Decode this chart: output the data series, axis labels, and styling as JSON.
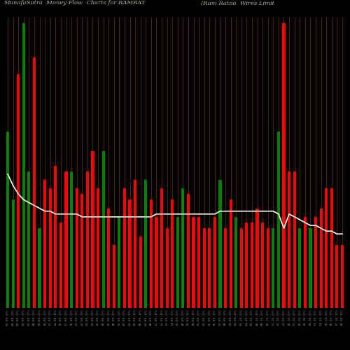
{
  "title_left": "MunafaSutra  Money Flow  Charts for RAMRAT",
  "title_right": "(Ram Ratna  Wires Limit",
  "background_color": "#000000",
  "bar_colors": [
    "green",
    "green",
    "red",
    "green",
    "green",
    "red",
    "green",
    "red",
    "red",
    "red",
    "red",
    "red",
    "green",
    "red",
    "red",
    "red",
    "red",
    "red",
    "green",
    "red",
    "red",
    "green",
    "red",
    "red",
    "red",
    "red",
    "green",
    "red",
    "red",
    "red",
    "red",
    "red",
    "green",
    "green",
    "red",
    "red",
    "red",
    "red",
    "red",
    "red",
    "green",
    "red",
    "red",
    "green",
    "red",
    "red",
    "red",
    "red",
    "red",
    "red",
    "green",
    "green",
    "red",
    "red",
    "red",
    "green",
    "red",
    "green",
    "red",
    "red",
    "red",
    "red",
    "red",
    "red"
  ],
  "bar_heights": [
    62,
    38,
    82,
    100,
    48,
    88,
    28,
    45,
    42,
    50,
    30,
    48,
    48,
    42,
    40,
    48,
    55,
    42,
    55,
    35,
    22,
    32,
    42,
    38,
    45,
    25,
    45,
    38,
    32,
    42,
    28,
    38,
    32,
    42,
    40,
    32,
    32,
    28,
    28,
    32,
    45,
    28,
    38,
    32,
    28,
    30,
    30,
    35,
    30,
    28,
    28,
    62,
    100,
    48,
    48,
    28,
    32,
    28,
    32,
    35,
    42,
    42,
    22,
    22
  ],
  "line_values": [
    47,
    43,
    40,
    38,
    37,
    36,
    35,
    34,
    34,
    33,
    33,
    33,
    33,
    33,
    32,
    32,
    32,
    32,
    32,
    32,
    32,
    32,
    32,
    32,
    32,
    32,
    32,
    32,
    33,
    33,
    33,
    33,
    33,
    33,
    33,
    33,
    33,
    33,
    33,
    33,
    34,
    34,
    34,
    34,
    34,
    34,
    34,
    34,
    34,
    34,
    34,
    33,
    28,
    33,
    32,
    31,
    30,
    29,
    29,
    28,
    27,
    27,
    26,
    26
  ],
  "labels": [
    "01-08-17%",
    "02-08-17%",
    "03-08-17%",
    "04-08-17%",
    "07-08-17%",
    "08-08-17%",
    "09-08-17%",
    "10-08-17%",
    "11-08-17%",
    "14-08-17%",
    "16-08-17%",
    "17-08-17%",
    "18-08-17%",
    "21-08-17%",
    "22-08-17%",
    "23-08-17%",
    "24-08-17%",
    "25-08-17%",
    "28-08-17%",
    "29-08-17%",
    "30-08-17%",
    "31-08-17%",
    "01-09-17%",
    "04-09-17%",
    "05-09-17%",
    "06-09-17%",
    "07-09-17%",
    "08-09-17%",
    "11-09-17%",
    "12-09-17%",
    "13-09-17%",
    "14-09-17%",
    "15-09-17%",
    "18-09-17%",
    "19-09-17%",
    "20-09-17%",
    "21-09-17%",
    "22-09-17%",
    "25-09-17%",
    "26-09-17%",
    "27-09-17%",
    "28-09-17%",
    "29-09-17%",
    "02-10-17%",
    "03-10-17%",
    "04-10-17%",
    "05-10-17%",
    "06-10-17%",
    "09-10-17%",
    "10-10-17%",
    "11-10-17%",
    "12-10-17%",
    "13-10-17%",
    "16-10-17%",
    "17-10-17%",
    "18-10-17%",
    "19-10-17%",
    "20-10-17%",
    "23-10-17%",
    "24-10-17%",
    "25-10-17%",
    "26-10-17%",
    "27-10-17%",
    "30-10-17%"
  ],
  "grid_color": "#7B3800",
  "line_color": "#ffffff",
  "title_color": "#b0b0a0",
  "title_fontsize": 6.0,
  "label_fontsize": 3.2,
  "label_color": "#909080"
}
